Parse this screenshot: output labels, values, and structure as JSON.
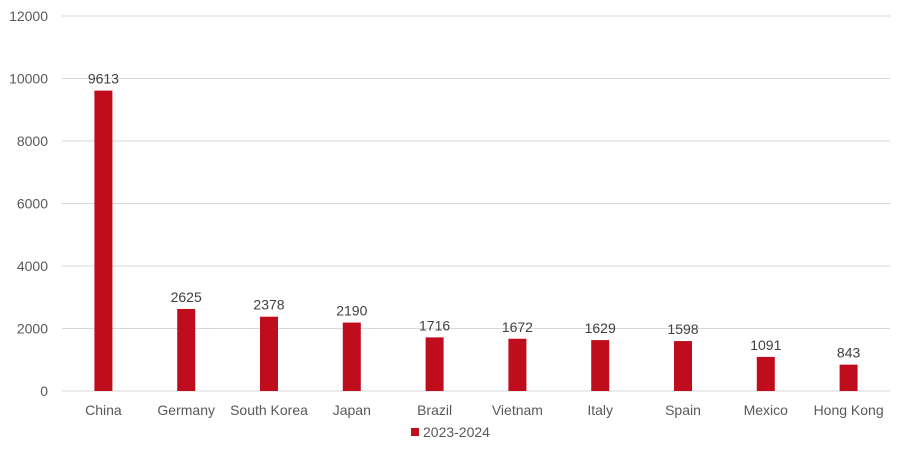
{
  "chart_data": {
    "type": "bar",
    "categories": [
      "China",
      "Germany",
      "South Korea",
      "Japan",
      "Brazil",
      "Vietnam",
      "Italy",
      "Spain",
      "Mexico",
      "Hong Kong"
    ],
    "series": [
      {
        "name": "2023-2024",
        "values": [
          9613,
          2625,
          2378,
          2190,
          1716,
          1672,
          1629,
          1598,
          1091,
          843
        ],
        "color": "#c00d1e"
      }
    ],
    "title": "",
    "xlabel": "",
    "ylabel": "",
    "ylim": [
      0,
      12000
    ],
    "yticks": [
      0,
      2000,
      4000,
      6000,
      8000,
      10000,
      12000
    ],
    "grid": true,
    "legend_position": "bottom",
    "data_labels": true
  }
}
